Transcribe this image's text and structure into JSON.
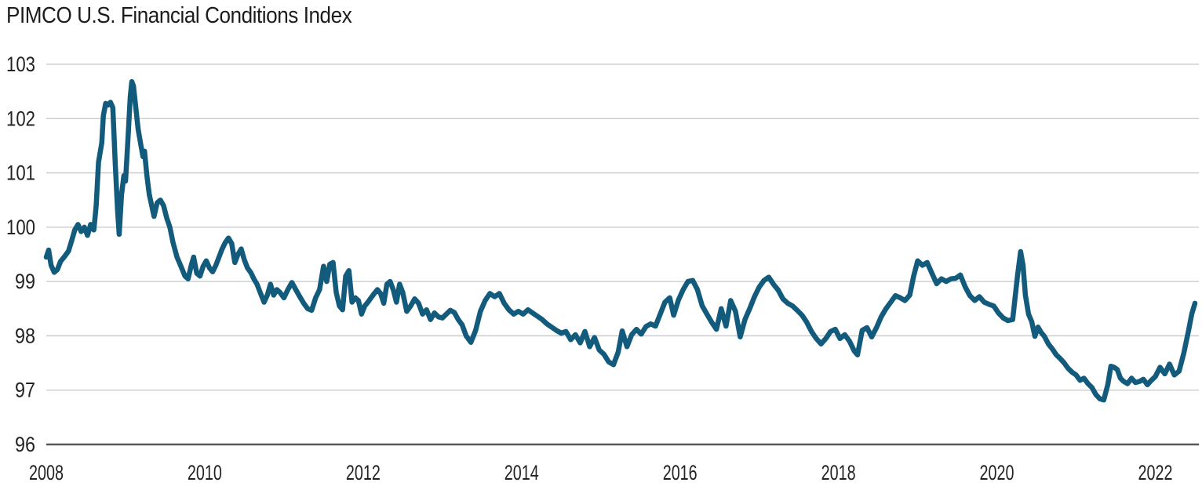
{
  "title": "PIMCO U.S. Financial Conditions Index",
  "chart_data": {
    "type": "line",
    "title": "PIMCO U.S. Financial Conditions Index",
    "xlabel": "",
    "ylabel": "",
    "x_ticks": [
      2008,
      2010,
      2012,
      2014,
      2016,
      2018,
      2020,
      2022
    ],
    "y_ticks": [
      96,
      97,
      98,
      99,
      100,
      101,
      102,
      103
    ],
    "xlim": [
      2008.0,
      2022.55
    ],
    "ylim": [
      96,
      103
    ],
    "grid": "horizontal-gridlines-on",
    "legend": "none",
    "line_color": "#135B7D",
    "gridline_color": "#C6C7C8",
    "axis_line_color": "#55565A",
    "text_color": "#222325",
    "series": [
      {
        "name": "PIMCO U.S. Financial Conditions Index",
        "points": [
          [
            2008.0,
            99.45
          ],
          [
            2008.03,
            99.58
          ],
          [
            2008.06,
            99.3
          ],
          [
            2008.1,
            99.17
          ],
          [
            2008.14,
            99.22
          ],
          [
            2008.18,
            99.37
          ],
          [
            2008.23,
            99.46
          ],
          [
            2008.28,
            99.56
          ],
          [
            2008.32,
            99.75
          ],
          [
            2008.36,
            99.95
          ],
          [
            2008.4,
            100.05
          ],
          [
            2008.44,
            99.92
          ],
          [
            2008.48,
            100.0
          ],
          [
            2008.52,
            99.85
          ],
          [
            2008.56,
            100.05
          ],
          [
            2008.6,
            99.95
          ],
          [
            2008.63,
            100.4
          ],
          [
            2008.66,
            101.2
          ],
          [
            2008.7,
            101.55
          ],
          [
            2008.72,
            102.05
          ],
          [
            2008.75,
            102.28
          ],
          [
            2008.78,
            102.25
          ],
          [
            2008.81,
            102.3
          ],
          [
            2008.84,
            102.2
          ],
          [
            2008.87,
            101.2
          ],
          [
            2008.9,
            100.3
          ],
          [
            2008.92,
            99.87
          ],
          [
            2008.95,
            100.6
          ],
          [
            2008.98,
            100.95
          ],
          [
            2009.0,
            100.85
          ],
          [
            2009.03,
            101.6
          ],
          [
            2009.06,
            102.4
          ],
          [
            2009.08,
            102.68
          ],
          [
            2009.1,
            102.6
          ],
          [
            2009.13,
            102.2
          ],
          [
            2009.16,
            101.8
          ],
          [
            2009.19,
            101.55
          ],
          [
            2009.22,
            101.3
          ],
          [
            2009.24,
            101.4
          ],
          [
            2009.27,
            100.95
          ],
          [
            2009.3,
            100.6
          ],
          [
            2009.33,
            100.4
          ],
          [
            2009.36,
            100.2
          ],
          [
            2009.4,
            100.45
          ],
          [
            2009.44,
            100.5
          ],
          [
            2009.48,
            100.4
          ],
          [
            2009.52,
            100.17
          ],
          [
            2009.56,
            100.0
          ],
          [
            2009.6,
            99.72
          ],
          [
            2009.65,
            99.45
          ],
          [
            2009.7,
            99.28
          ],
          [
            2009.75,
            99.1
          ],
          [
            2009.79,
            99.05
          ],
          [
            2009.83,
            99.3
          ],
          [
            2009.86,
            99.45
          ],
          [
            2009.9,
            99.15
          ],
          [
            2009.94,
            99.1
          ],
          [
            2009.98,
            99.28
          ],
          [
            2010.02,
            99.38
          ],
          [
            2010.06,
            99.25
          ],
          [
            2010.1,
            99.18
          ],
          [
            2010.14,
            99.3
          ],
          [
            2010.18,
            99.45
          ],
          [
            2010.22,
            99.6
          ],
          [
            2010.26,
            99.72
          ],
          [
            2010.3,
            99.8
          ],
          [
            2010.34,
            99.7
          ],
          [
            2010.38,
            99.35
          ],
          [
            2010.42,
            99.5
          ],
          [
            2010.46,
            99.6
          ],
          [
            2010.5,
            99.4
          ],
          [
            2010.54,
            99.25
          ],
          [
            2010.58,
            99.17
          ],
          [
            2010.62,
            99.05
          ],
          [
            2010.66,
            98.95
          ],
          [
            2010.7,
            98.8
          ],
          [
            2010.75,
            98.62
          ],
          [
            2010.79,
            98.75
          ],
          [
            2010.83,
            98.95
          ],
          [
            2010.87,
            98.75
          ],
          [
            2010.91,
            98.85
          ],
          [
            2010.95,
            98.8
          ],
          [
            2011.0,
            98.7
          ],
          [
            2011.05,
            98.85
          ],
          [
            2011.1,
            98.98
          ],
          [
            2011.15,
            98.85
          ],
          [
            2011.2,
            98.72
          ],
          [
            2011.25,
            98.6
          ],
          [
            2011.3,
            98.5
          ],
          [
            2011.35,
            98.47
          ],
          [
            2011.4,
            98.7
          ],
          [
            2011.45,
            98.85
          ],
          [
            2011.5,
            99.28
          ],
          [
            2011.54,
            99.0
          ],
          [
            2011.58,
            99.32
          ],
          [
            2011.62,
            99.35
          ],
          [
            2011.66,
            98.8
          ],
          [
            2011.7,
            98.55
          ],
          [
            2011.74,
            98.48
          ],
          [
            2011.78,
            99.1
          ],
          [
            2011.82,
            99.2
          ],
          [
            2011.86,
            98.62
          ],
          [
            2011.9,
            98.7
          ],
          [
            2011.94,
            98.65
          ],
          [
            2011.98,
            98.4
          ],
          [
            2012.02,
            98.55
          ],
          [
            2012.06,
            98.62
          ],
          [
            2012.1,
            98.7
          ],
          [
            2012.14,
            98.78
          ],
          [
            2012.18,
            98.85
          ],
          [
            2012.22,
            98.78
          ],
          [
            2012.26,
            98.6
          ],
          [
            2012.3,
            98.95
          ],
          [
            2012.34,
            99.0
          ],
          [
            2012.38,
            98.85
          ],
          [
            2012.42,
            98.62
          ],
          [
            2012.46,
            98.95
          ],
          [
            2012.5,
            98.8
          ],
          [
            2012.55,
            98.45
          ],
          [
            2012.6,
            98.55
          ],
          [
            2012.65,
            98.68
          ],
          [
            2012.7,
            98.6
          ],
          [
            2012.75,
            98.4
          ],
          [
            2012.8,
            98.48
          ],
          [
            2012.85,
            98.3
          ],
          [
            2012.9,
            98.42
          ],
          [
            2012.95,
            98.35
          ],
          [
            2013.0,
            98.33
          ],
          [
            2013.05,
            98.4
          ],
          [
            2013.1,
            98.47
          ],
          [
            2013.15,
            98.43
          ],
          [
            2013.2,
            98.3
          ],
          [
            2013.25,
            98.2
          ],
          [
            2013.3,
            98.0
          ],
          [
            2013.36,
            97.88
          ],
          [
            2013.42,
            98.1
          ],
          [
            2013.48,
            98.45
          ],
          [
            2013.54,
            98.65
          ],
          [
            2013.6,
            98.78
          ],
          [
            2013.66,
            98.72
          ],
          [
            2013.72,
            98.78
          ],
          [
            2013.78,
            98.6
          ],
          [
            2013.84,
            98.48
          ],
          [
            2013.9,
            98.4
          ],
          [
            2013.96,
            98.45
          ],
          [
            2014.02,
            98.4
          ],
          [
            2014.08,
            98.48
          ],
          [
            2014.14,
            98.42
          ],
          [
            2014.2,
            98.36
          ],
          [
            2014.26,
            98.3
          ],
          [
            2014.32,
            98.22
          ],
          [
            2014.38,
            98.16
          ],
          [
            2014.44,
            98.1
          ],
          [
            2014.5,
            98.05
          ],
          [
            2014.56,
            98.08
          ],
          [
            2014.62,
            97.93
          ],
          [
            2014.68,
            98.02
          ],
          [
            2014.74,
            97.87
          ],
          [
            2014.8,
            98.08
          ],
          [
            2014.86,
            97.8
          ],
          [
            2014.92,
            97.97
          ],
          [
            2014.98,
            97.74
          ],
          [
            2015.04,
            97.66
          ],
          [
            2015.1,
            97.52
          ],
          [
            2015.16,
            97.47
          ],
          [
            2015.22,
            97.7
          ],
          [
            2015.27,
            98.09
          ],
          [
            2015.33,
            97.8
          ],
          [
            2015.39,
            98.02
          ],
          [
            2015.45,
            98.12
          ],
          [
            2015.51,
            98.03
          ],
          [
            2015.57,
            98.17
          ],
          [
            2015.63,
            98.22
          ],
          [
            2015.69,
            98.18
          ],
          [
            2015.75,
            98.4
          ],
          [
            2015.81,
            98.62
          ],
          [
            2015.87,
            98.7
          ],
          [
            2015.92,
            98.38
          ],
          [
            2015.98,
            98.66
          ],
          [
            2016.04,
            98.85
          ],
          [
            2016.1,
            99.0
          ],
          [
            2016.16,
            99.02
          ],
          [
            2016.22,
            98.85
          ],
          [
            2016.28,
            98.55
          ],
          [
            2016.34,
            98.4
          ],
          [
            2016.4,
            98.25
          ],
          [
            2016.46,
            98.12
          ],
          [
            2016.52,
            98.5
          ],
          [
            2016.58,
            98.18
          ],
          [
            2016.64,
            98.65
          ],
          [
            2016.7,
            98.45
          ],
          [
            2016.76,
            97.98
          ],
          [
            2016.82,
            98.3
          ],
          [
            2016.88,
            98.5
          ],
          [
            2016.94,
            98.72
          ],
          [
            2017.0,
            98.9
          ],
          [
            2017.06,
            99.02
          ],
          [
            2017.12,
            99.08
          ],
          [
            2017.18,
            98.95
          ],
          [
            2017.24,
            98.84
          ],
          [
            2017.3,
            98.68
          ],
          [
            2017.36,
            98.6
          ],
          [
            2017.42,
            98.55
          ],
          [
            2017.48,
            98.47
          ],
          [
            2017.54,
            98.38
          ],
          [
            2017.6,
            98.25
          ],
          [
            2017.66,
            98.08
          ],
          [
            2017.72,
            97.95
          ],
          [
            2017.78,
            97.85
          ],
          [
            2017.84,
            97.95
          ],
          [
            2017.9,
            98.08
          ],
          [
            2017.96,
            98.12
          ],
          [
            2018.02,
            97.95
          ],
          [
            2018.08,
            98.02
          ],
          [
            2018.14,
            97.9
          ],
          [
            2018.2,
            97.72
          ],
          [
            2018.24,
            97.65
          ],
          [
            2018.3,
            98.1
          ],
          [
            2018.36,
            98.15
          ],
          [
            2018.42,
            97.98
          ],
          [
            2018.48,
            98.15
          ],
          [
            2018.54,
            98.35
          ],
          [
            2018.6,
            98.5
          ],
          [
            2018.66,
            98.62
          ],
          [
            2018.72,
            98.74
          ],
          [
            2018.78,
            98.7
          ],
          [
            2018.84,
            98.65
          ],
          [
            2018.9,
            98.75
          ],
          [
            2018.95,
            99.1
          ],
          [
            2019.0,
            99.38
          ],
          [
            2019.06,
            99.3
          ],
          [
            2019.12,
            99.35
          ],
          [
            2019.18,
            99.15
          ],
          [
            2019.24,
            98.96
          ],
          [
            2019.3,
            99.05
          ],
          [
            2019.36,
            99.0
          ],
          [
            2019.42,
            99.05
          ],
          [
            2019.48,
            99.06
          ],
          [
            2019.54,
            99.12
          ],
          [
            2019.6,
            98.9
          ],
          [
            2019.66,
            98.74
          ],
          [
            2019.72,
            98.65
          ],
          [
            2019.78,
            98.72
          ],
          [
            2019.84,
            98.62
          ],
          [
            2019.9,
            98.58
          ],
          [
            2019.96,
            98.55
          ],
          [
            2020.02,
            98.42
          ],
          [
            2020.08,
            98.33
          ],
          [
            2020.14,
            98.28
          ],
          [
            2020.2,
            98.3
          ],
          [
            2020.26,
            99.1
          ],
          [
            2020.3,
            99.55
          ],
          [
            2020.33,
            99.3
          ],
          [
            2020.36,
            98.75
          ],
          [
            2020.4,
            98.4
          ],
          [
            2020.44,
            98.26
          ],
          [
            2020.48,
            97.99
          ],
          [
            2020.52,
            98.16
          ],
          [
            2020.56,
            98.06
          ],
          [
            2020.6,
            97.99
          ],
          [
            2020.65,
            97.85
          ],
          [
            2020.7,
            97.76
          ],
          [
            2020.75,
            97.65
          ],
          [
            2020.8,
            97.58
          ],
          [
            2020.85,
            97.5
          ],
          [
            2020.9,
            97.4
          ],
          [
            2020.95,
            97.33
          ],
          [
            2021.0,
            97.28
          ],
          [
            2021.05,
            97.18
          ],
          [
            2021.1,
            97.22
          ],
          [
            2021.15,
            97.12
          ],
          [
            2021.2,
            97.05
          ],
          [
            2021.25,
            96.92
          ],
          [
            2021.3,
            96.84
          ],
          [
            2021.35,
            96.82
          ],
          [
            2021.4,
            97.1
          ],
          [
            2021.44,
            97.44
          ],
          [
            2021.48,
            97.42
          ],
          [
            2021.52,
            97.38
          ],
          [
            2021.56,
            97.22
          ],
          [
            2021.6,
            97.16
          ],
          [
            2021.65,
            97.12
          ],
          [
            2021.7,
            97.22
          ],
          [
            2021.75,
            97.14
          ],
          [
            2021.8,
            97.16
          ],
          [
            2021.85,
            97.2
          ],
          [
            2021.9,
            97.1
          ],
          [
            2021.95,
            97.18
          ],
          [
            2022.0,
            97.25
          ],
          [
            2022.06,
            97.42
          ],
          [
            2022.12,
            97.3
          ],
          [
            2022.18,
            97.48
          ],
          [
            2022.24,
            97.28
          ],
          [
            2022.3,
            97.35
          ],
          [
            2022.36,
            97.68
          ],
          [
            2022.42,
            98.1
          ],
          [
            2022.46,
            98.4
          ],
          [
            2022.5,
            98.6
          ]
        ]
      }
    ]
  }
}
